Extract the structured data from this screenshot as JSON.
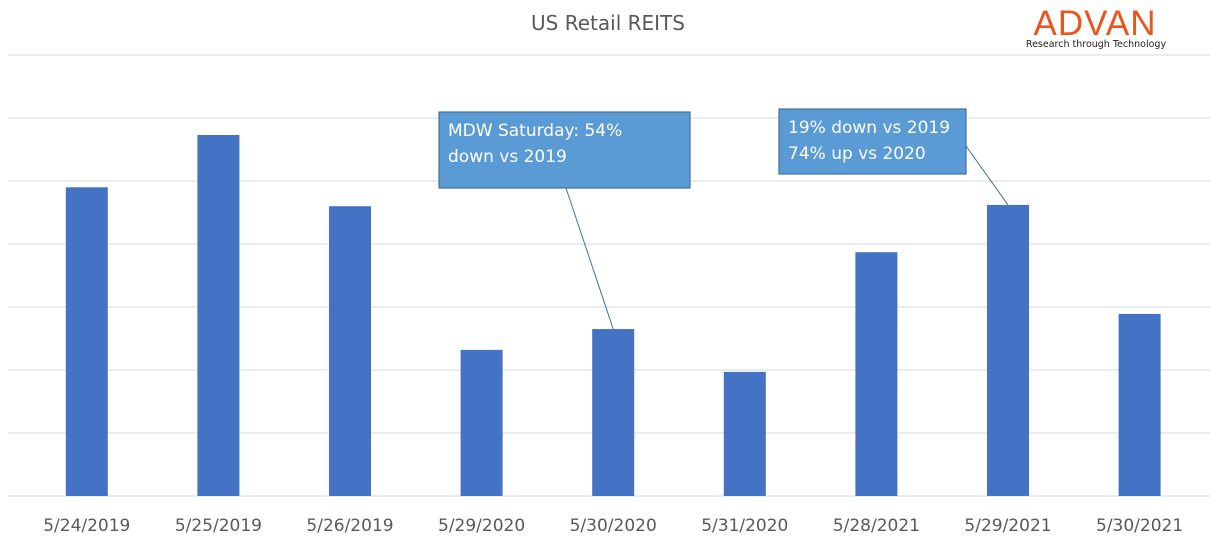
{
  "chart_data": {
    "type": "bar",
    "title": "US Retail REITS",
    "xlabel": "",
    "ylabel": "",
    "ylim": [
      0,
      7
    ],
    "grid": true,
    "categories": [
      "5/24/2019",
      "5/25/2019",
      "5/26/2019",
      "5/29/2020",
      "5/30/2020",
      "5/31/2020",
      "5/28/2021",
      "5/29/2021",
      "5/30/2021"
    ],
    "values": [
      4.9,
      5.73,
      4.6,
      2.32,
      2.65,
      1.97,
      3.87,
      4.62,
      2.89
    ],
    "bar_color": "#4472c4",
    "annotations": [
      {
        "category_index": 4,
        "lines": [
          "MDW Saturday: 54%",
          "down vs 2019"
        ]
      },
      {
        "category_index": 7,
        "lines": [
          "19% down vs 2019",
          "74% up vs 2020"
        ]
      }
    ]
  },
  "logo": {
    "name": "ADVAN",
    "tagline": "Research through Technology",
    "color": "#e8561c"
  }
}
